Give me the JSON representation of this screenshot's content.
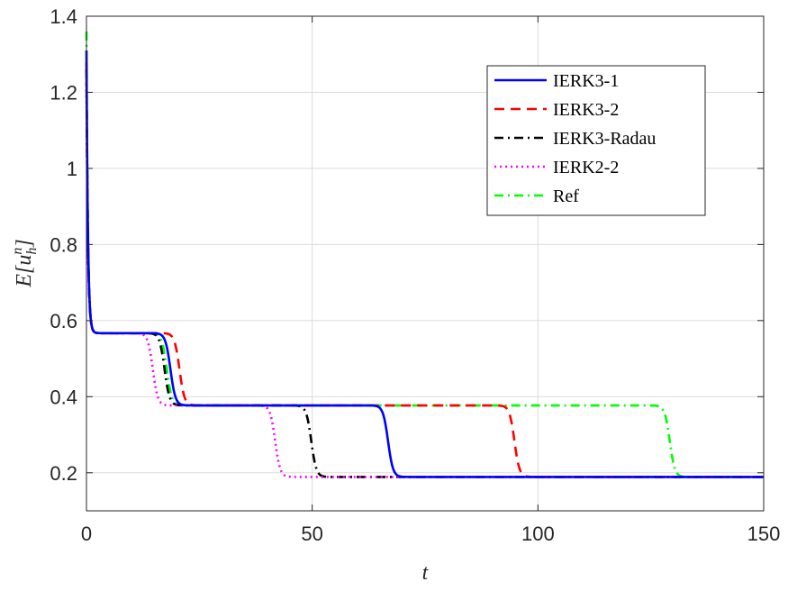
{
  "chart_data": {
    "type": "line",
    "title": "",
    "xlabel": "t",
    "ylabel": {
      "base": "E[u",
      "sub": "h",
      "sup": "n",
      "close": "]"
    },
    "xlim": [
      0,
      150
    ],
    "ylim": [
      0.1,
      1.4
    ],
    "xticks": [
      0,
      50,
      100,
      150
    ],
    "xtick_labels": [
      "0",
      "50",
      "100",
      "150"
    ],
    "yticks": [
      0.2,
      0.4,
      0.6,
      0.8,
      1.0,
      1.2,
      1.4
    ],
    "ytick_labels": [
      "0.2",
      "0.4",
      "0.6",
      "0.8",
      "1",
      "1.2",
      "1.4"
    ],
    "grid": true,
    "legend_position": "top-right",
    "series": [
      {
        "name": "IERK3-1",
        "color": "#0000ff",
        "dash": "solid",
        "levels": [
          0.567,
          0.377,
          0.189
        ],
        "transitions": [
          18.6,
          66.8
        ],
        "start": 1.31
      },
      {
        "name": "IERK3-2",
        "color": "#ff0000",
        "dash": "dashed",
        "levels": [
          0.567,
          0.377,
          0.189
        ],
        "transitions": [
          20.6,
          94.8
        ],
        "start": 1.28
      },
      {
        "name": "IERK3-Radau",
        "color": "#000000",
        "dash": "dashdot",
        "levels": [
          0.567,
          0.377,
          0.189
        ],
        "transitions": [
          17.3,
          49.8
        ],
        "start": 1.26
      },
      {
        "name": "IERK2-2",
        "color": "#ff00ff",
        "dash": "dotted",
        "levels": [
          0.567,
          0.377,
          0.189
        ],
        "transitions": [
          14.7,
          41.8
        ],
        "start": 1.22
      },
      {
        "name": "Ref",
        "color": "#00ff00",
        "dash": "dashdot",
        "levels": [
          0.567,
          0.377,
          0.189
        ],
        "transitions": [
          17.8,
          129.2
        ],
        "start": 1.36
      }
    ]
  }
}
